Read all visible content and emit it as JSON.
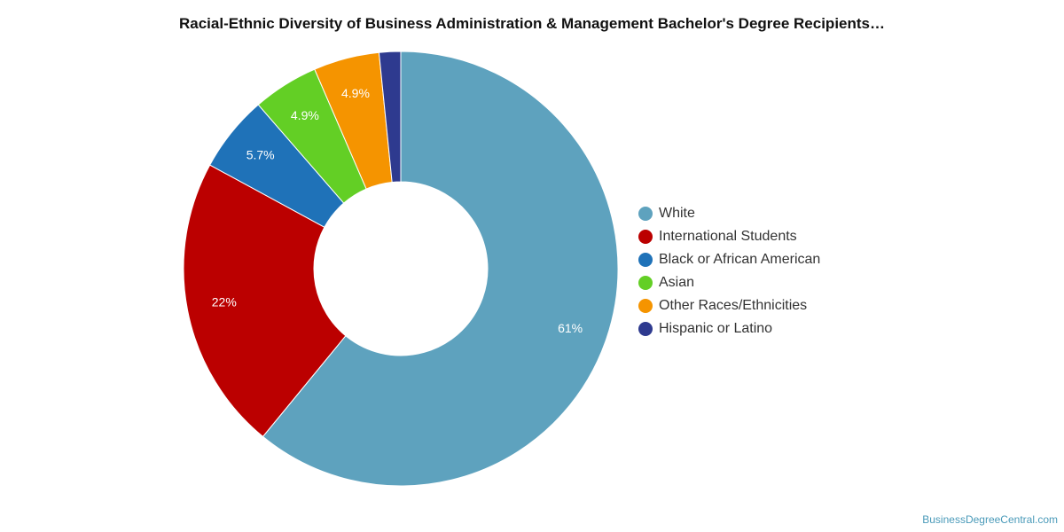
{
  "chart_data": {
    "type": "pie",
    "subtype": "donut",
    "title": "Racial-Ethnic Diversity of Business Administration & Management Bachelor's Degree Recipients…",
    "legend_position": "right",
    "slices": [
      {
        "label": "White",
        "value": 61,
        "display": "61%",
        "color": "#5ea2be"
      },
      {
        "label": "International Students",
        "value": 22,
        "display": "22%",
        "color": "#bb0000"
      },
      {
        "label": "Black or African American",
        "value": 5.7,
        "display": "5.7%",
        "color": "#1f72b8"
      },
      {
        "label": "Asian",
        "value": 4.9,
        "display": "4.9%",
        "color": "#63cf25"
      },
      {
        "label": "Other Races/Ethnicities",
        "value": 4.9,
        "display": "4.9%",
        "color": "#f59400"
      },
      {
        "label": "Hispanic or Latino",
        "value": 1.6,
        "display": "",
        "color": "#2e3a8f"
      }
    ]
  },
  "source": "BusinessDegreeCentral.com"
}
